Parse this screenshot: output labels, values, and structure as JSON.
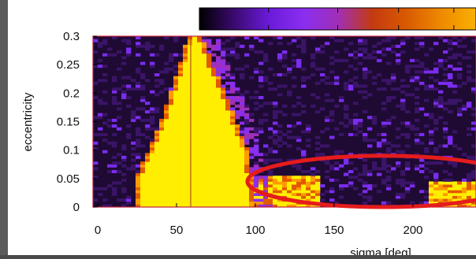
{
  "chart_data": {
    "type": "heatmap",
    "title": "",
    "xlabel": "sigma [deg]",
    "ylabel": "eccentricity",
    "xlim": [
      -3,
      240
    ],
    "ylim": [
      0,
      0.3
    ],
    "x_ticks": [
      "0",
      "50",
      "100",
      "150",
      "200"
    ],
    "y_ticks": [
      "0.3",
      "0.25",
      "0.2",
      "0.15",
      "0.1",
      "0.05",
      "0"
    ],
    "x_tick_values": [
      0,
      50,
      100,
      150,
      200
    ],
    "y_tick_values": [
      0.3,
      0.25,
      0.2,
      0.15,
      0.1,
      0.05,
      0
    ],
    "grid": false,
    "colorbar": {
      "position": "top",
      "colors": [
        "#000000",
        "#3a0a6e",
        "#6a1ad8",
        "#8a2ef0",
        "#a02fb8",
        "#c43a10",
        "#d95a00",
        "#ef8a00",
        "#f8b000"
      ]
    },
    "colors": {
      "background": "#1e0a33",
      "noise_low": "#3a1466",
      "noise_high": "#7b2cf0",
      "band_edge": "#e25a00",
      "band_core": "#ffee00",
      "center_line": "#b5521c",
      "annotation": "#e51c1c"
    },
    "bright_band": {
      "reference_line_x": 59,
      "left_edge": [
        {
          "e": 0.0,
          "sigma": 24
        },
        {
          "e": 0.05,
          "sigma": 24
        },
        {
          "e": 0.1,
          "sigma": 32
        },
        {
          "e": 0.15,
          "sigma": 40
        },
        {
          "e": 0.2,
          "sigma": 46
        },
        {
          "e": 0.25,
          "sigma": 52
        },
        {
          "e": 0.3,
          "sigma": 57
        }
      ],
      "right_edge": [
        {
          "e": 0.0,
          "sigma": 100
        },
        {
          "e": 0.05,
          "sigma": 98
        },
        {
          "e": 0.1,
          "sigma": 95
        },
        {
          "e": 0.15,
          "sigma": 88
        },
        {
          "e": 0.2,
          "sigma": 81
        },
        {
          "e": 0.25,
          "sigma": 73
        },
        {
          "e": 0.3,
          "sigma": 66
        }
      ]
    },
    "low_e_patches": [
      {
        "sigma_min": 96,
        "sigma_max": 140,
        "e_min": 0.0,
        "e_max": 0.055
      },
      {
        "sigma_min": 210,
        "sigma_max": 240,
        "e_min": 0.0,
        "e_max": 0.045
      }
    ],
    "annotation": {
      "type": "ellipse",
      "color": "#e51c1c",
      "center_sigma": 181,
      "center_e": 0.045,
      "half_width_sigma": 86,
      "half_height_e": 0.045
    }
  }
}
